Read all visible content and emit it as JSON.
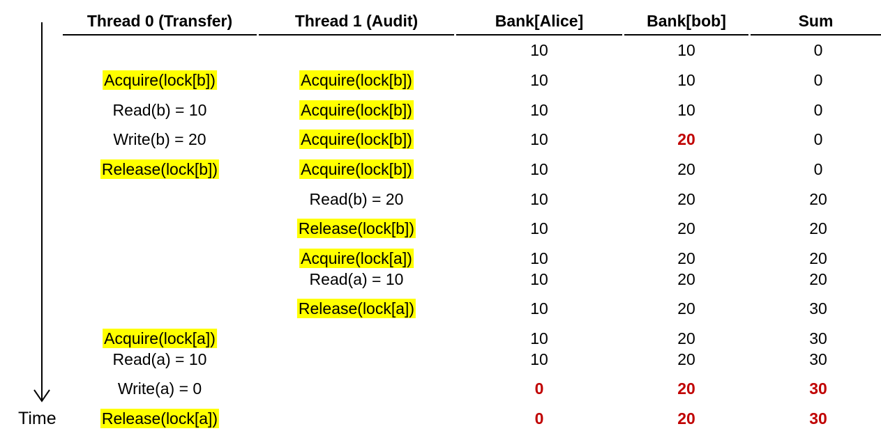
{
  "headers": {
    "thread0": "Thread 0 (Transfer)",
    "thread1": "Thread 1 (Audit)",
    "alice": "Bank[Alice]",
    "bob": "Bank[bob]",
    "sum": "Sum"
  },
  "time_label": "Time",
  "colors": {
    "highlight": "#ffff00",
    "changed": "#c00000"
  },
  "rows": [
    {
      "t0": "",
      "t0_hl": false,
      "t1": "",
      "t1_hl": false,
      "alice": "10",
      "alice_red": false,
      "bob": "10",
      "bob_red": false,
      "sum": "0",
      "sum_red": false
    },
    {
      "t0": "Acquire(lock[b])",
      "t0_hl": true,
      "t1": "Acquire(lock[b])",
      "t1_hl": true,
      "alice": "10",
      "alice_red": false,
      "bob": "10",
      "bob_red": false,
      "sum": "0",
      "sum_red": false
    },
    {
      "t0": "Read(b) = 10",
      "t0_hl": false,
      "t1": "Acquire(lock[b])",
      "t1_hl": true,
      "alice": "10",
      "alice_red": false,
      "bob": "10",
      "bob_red": false,
      "sum": "0",
      "sum_red": false
    },
    {
      "t0": "Write(b) = 20",
      "t0_hl": false,
      "t1": "Acquire(lock[b])",
      "t1_hl": true,
      "alice": "10",
      "alice_red": false,
      "bob": "20",
      "bob_red": true,
      "sum": "0",
      "sum_red": false
    },
    {
      "t0": "Release(lock[b])",
      "t0_hl": true,
      "t1": "Acquire(lock[b])",
      "t1_hl": true,
      "alice": "10",
      "alice_red": false,
      "bob": "20",
      "bob_red": false,
      "sum": "0",
      "sum_red": false
    },
    {
      "t0": "",
      "t0_hl": false,
      "t1": "Read(b) = 20",
      "t1_hl": false,
      "alice": "10",
      "alice_red": false,
      "bob": "20",
      "bob_red": false,
      "sum": "20",
      "sum_red": false
    },
    {
      "t0": "",
      "t0_hl": false,
      "t1": "Release(lock[b])",
      "t1_hl": true,
      "alice": "10",
      "alice_red": false,
      "bob": "20",
      "bob_red": false,
      "sum": "20",
      "sum_red": false
    },
    {
      "t0": "",
      "t0_hl": false,
      "t1": "Acquire(lock[a])",
      "t1_hl": true,
      "alice": "10",
      "alice_red": false,
      "bob": "20",
      "bob_red": false,
      "sum": "20",
      "sum_red": false
    },
    {
      "t0": "",
      "t0_hl": false,
      "t1": "Read(a) = 10",
      "t1_hl": false,
      "alice": "10",
      "alice_red": false,
      "bob": "20",
      "bob_red": false,
      "sum": "20",
      "sum_red": false
    },
    {
      "t0": "",
      "t0_hl": false,
      "t1": "Release(lock[a])",
      "t1_hl": true,
      "alice": "10",
      "alice_red": false,
      "bob": "20",
      "bob_red": false,
      "sum": "30",
      "sum_red": false
    },
    {
      "t0": "Acquire(lock[a])",
      "t0_hl": true,
      "t1": "",
      "t1_hl": false,
      "alice": "10",
      "alice_red": false,
      "bob": "20",
      "bob_red": false,
      "sum": "30",
      "sum_red": false
    },
    {
      "t0": "Read(a) = 10",
      "t0_hl": false,
      "t1": "",
      "t1_hl": false,
      "alice": "10",
      "alice_red": false,
      "bob": "20",
      "bob_red": false,
      "sum": "30",
      "sum_red": false
    },
    {
      "t0": "Write(a) = 0",
      "t0_hl": false,
      "t1": "",
      "t1_hl": false,
      "alice": "0",
      "alice_red": true,
      "bob": "20",
      "bob_red": true,
      "sum": "30",
      "sum_red": true
    },
    {
      "t0": "Release(lock[a])",
      "t0_hl": true,
      "t1": "",
      "t1_hl": false,
      "alice": "0",
      "alice_red": true,
      "bob": "20",
      "bob_red": true,
      "sum": "30",
      "sum_red": true
    }
  ]
}
